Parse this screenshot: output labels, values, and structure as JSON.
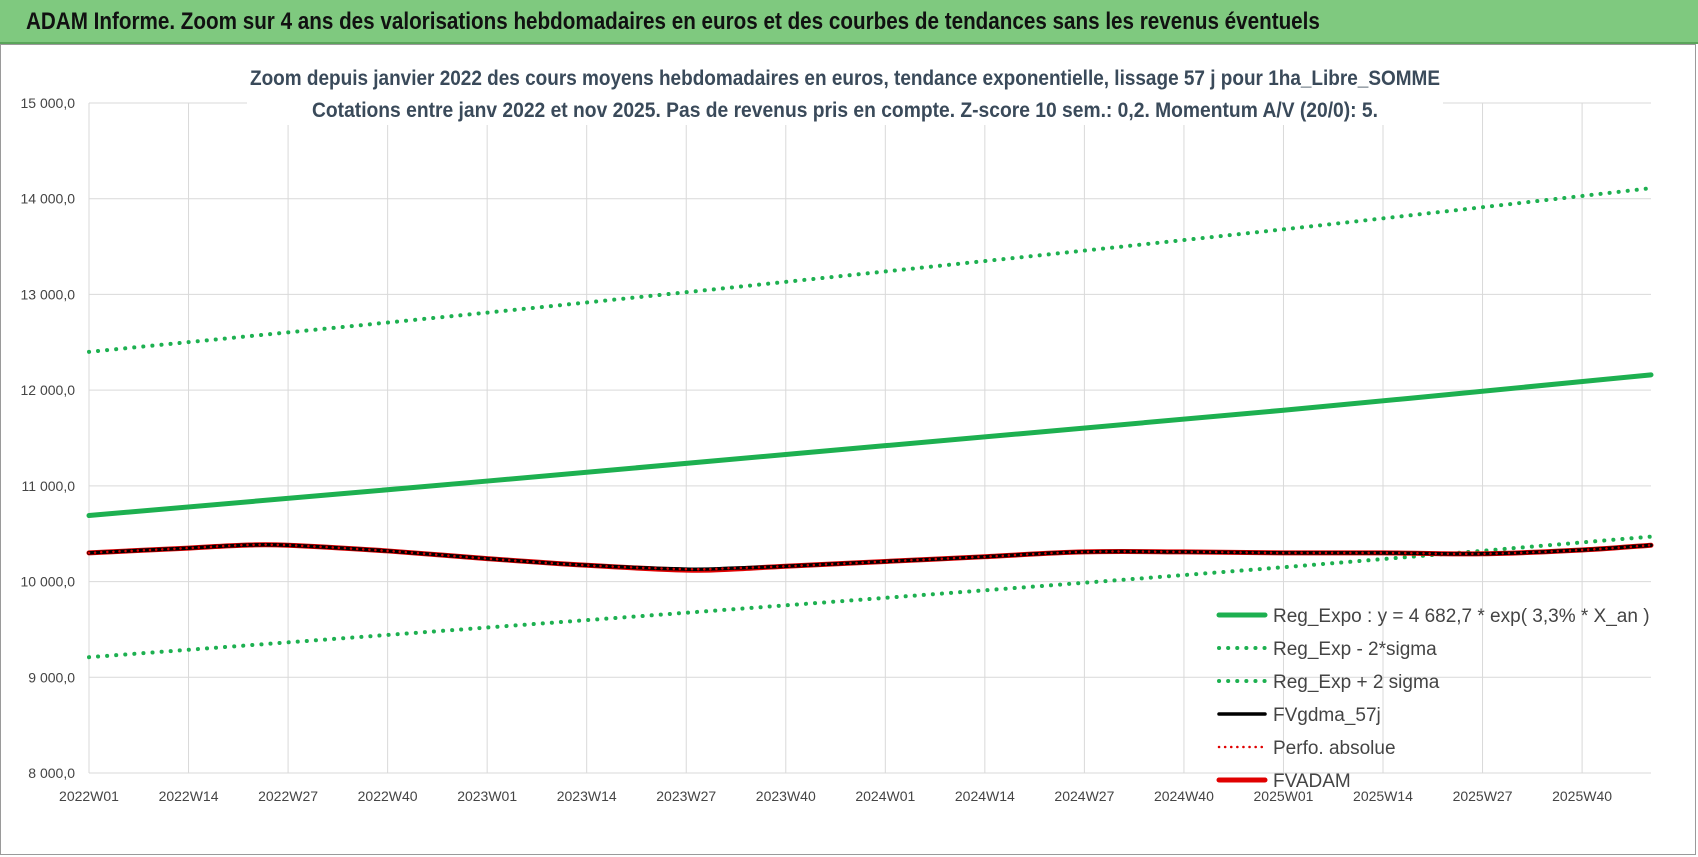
{
  "header": {
    "title": "ADAM Informe. Zoom sur 4 ans des valorisations hebdomadaires en euros et des courbes de tendances sans les revenus éventuels"
  },
  "chart_data": {
    "type": "line",
    "title": "Zoom depuis janvier 2022 des cours moyens hebdomadaires en euros, tendance exponentielle, lissage 57 j pour 1ha_Libre_SOMME",
    "subtitle": "Cotations entre janv 2022 et nov 2025. Pas de revenus pris en compte. Z-score 10 sem.: 0,2. Momentum A/V (20/0): 5.",
    "xlabel": "",
    "ylabel": "",
    "ylim": [
      8000,
      15000
    ],
    "yticks": [
      8000,
      9000,
      10000,
      11000,
      12000,
      13000,
      14000,
      15000
    ],
    "ytick_labels": [
      "8 000,0",
      "9 000,0",
      "10 000,0",
      "11 000,0",
      "12 000,0",
      "13 000,0",
      "14 000,0",
      "15 000,0"
    ],
    "xtick_labels": [
      "2022W01",
      "2022W14",
      "2022W27",
      "2022W40",
      "2023W01",
      "2023W14",
      "2023W27",
      "2023W40",
      "2024W01",
      "2024W14",
      "2024W27",
      "2024W40",
      "2025W01",
      "2025W14",
      "2025W27",
      "2025W40"
    ],
    "x_week_index": [
      0,
      13,
      26,
      39,
      52,
      65,
      78,
      91,
      104,
      117,
      130,
      143,
      156,
      169,
      182,
      195
    ],
    "x_end_index": 204,
    "grid": true,
    "legend_position": "right",
    "series": [
      {
        "name": "Reg_Expo : y = 4 682,7 * exp( 3,3% *  X_an )",
        "color": "#1db050",
        "style": "solid-thick",
        "x": [
          0,
          52,
          104,
          156,
          204
        ],
        "values": [
          10690,
          11050,
          11420,
          11790,
          12160
        ]
      },
      {
        "name": "Reg_Exp - 2*sigma",
        "color": "#1db050",
        "style": "dotted",
        "x": [
          0,
          52,
          104,
          156,
          204
        ],
        "values": [
          9210,
          9520,
          9830,
          10150,
          10470
        ]
      },
      {
        "name": "Reg_Exp + 2 sigma",
        "color": "#1db050",
        "style": "dotted",
        "x": [
          0,
          52,
          104,
          156,
          204
        ],
        "values": [
          12400,
          12810,
          13240,
          13680,
          14110
        ]
      },
      {
        "name": "FVgdma_57j",
        "color": "#000000",
        "style": "solid",
        "x": [
          0,
          13,
          20,
          26,
          39,
          52,
          65,
          78,
          84,
          91,
          104,
          117,
          130,
          143,
          156,
          169,
          182,
          195,
          204
        ],
        "values": [
          10300,
          10350,
          10380,
          10380,
          10320,
          10240,
          10170,
          10130,
          10140,
          10160,
          10210,
          10260,
          10310,
          10310,
          10300,
          10300,
          10290,
          10330,
          10380
        ]
      },
      {
        "name": "Perfo. absolue",
        "color": "#e00000",
        "style": "dotted-thin",
        "x": [
          0,
          13,
          20,
          26,
          39,
          52,
          65,
          78,
          84,
          91,
          104,
          117,
          130,
          143,
          156,
          169,
          182,
          195,
          204
        ],
        "values": [
          10300,
          10350,
          10380,
          10380,
          10320,
          10240,
          10170,
          10130,
          10140,
          10160,
          10210,
          10260,
          10310,
          10310,
          10300,
          10300,
          10290,
          10330,
          10380
        ]
      },
      {
        "name": "FVADAM",
        "color": "#e00000",
        "style": "solid-thick",
        "x": [
          0,
          13,
          20,
          26,
          39,
          52,
          65,
          78,
          84,
          91,
          104,
          117,
          130,
          143,
          156,
          169,
          182,
          195,
          204
        ],
        "values": [
          10300,
          10350,
          10380,
          10380,
          10320,
          10240,
          10170,
          10120,
          10130,
          10160,
          10210,
          10260,
          10310,
          10310,
          10300,
          10300,
          10290,
          10330,
          10380
        ]
      }
    ]
  }
}
